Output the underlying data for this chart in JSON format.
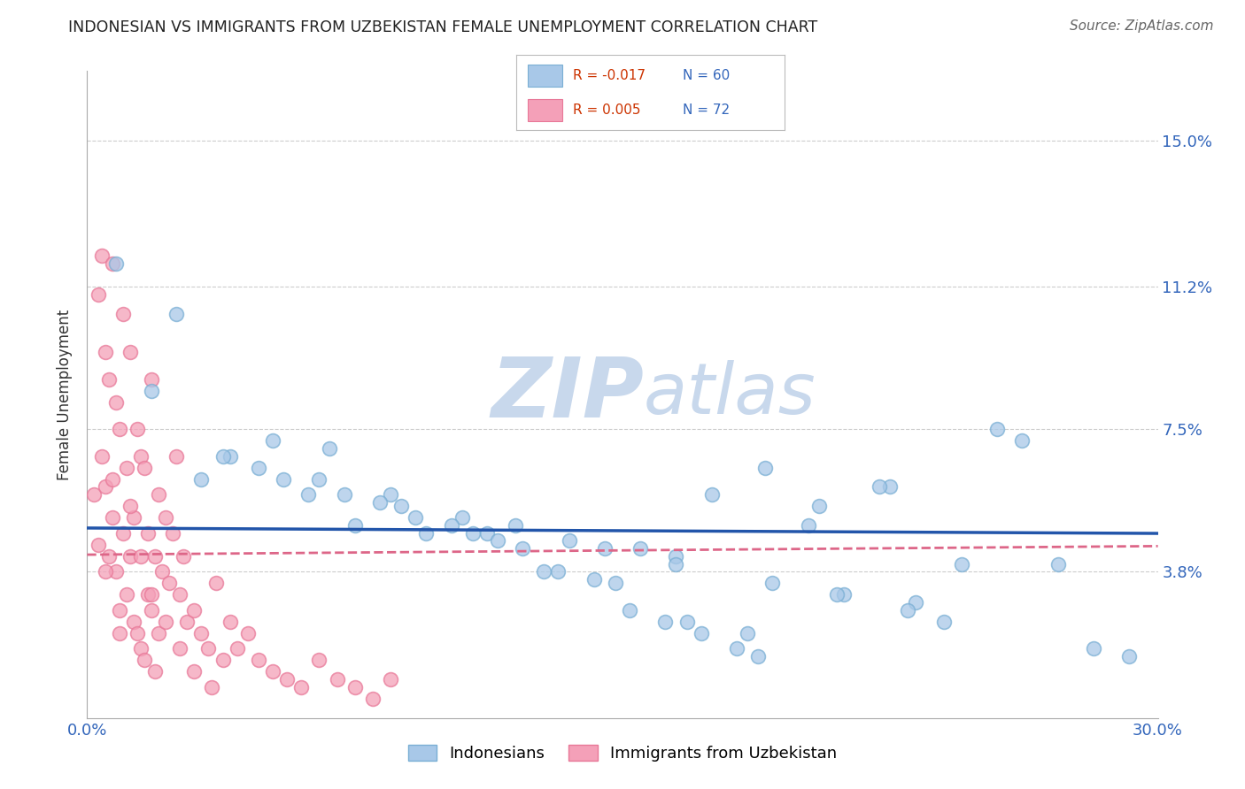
{
  "title": "INDONESIAN VS IMMIGRANTS FROM UZBEKISTAN FEMALE UNEMPLOYMENT CORRELATION CHART",
  "source": "Source: ZipAtlas.com",
  "ylabel": "Female Unemployment",
  "xlim": [
    0.0,
    0.3
  ],
  "ylim": [
    0.0,
    0.168
  ],
  "xticks": [
    0.0,
    0.05,
    0.1,
    0.15,
    0.2,
    0.25,
    0.3
  ],
  "xticklabels": [
    "0.0%",
    "",
    "",
    "",
    "",
    "",
    "30.0%"
  ],
  "yticks": [
    0.038,
    0.075,
    0.112,
    0.15
  ],
  "yticklabels": [
    "3.8%",
    "7.5%",
    "11.2%",
    "15.0%"
  ],
  "hgrid_values": [
    0.038,
    0.075,
    0.112,
    0.15
  ],
  "blue_R": "-0.017",
  "blue_N": "60",
  "pink_R": "0.005",
  "pink_N": "72",
  "blue_color": "#a8c8e8",
  "pink_color": "#f4a0b8",
  "blue_edge_color": "#7aafd4",
  "pink_edge_color": "#e87898",
  "blue_line_color": "#2255aa",
  "pink_line_color": "#dd6688",
  "watermark_zip": "ZIP",
  "watermark_atlas": "atlas",
  "watermark_color": "#c8d8ec",
  "legend_label_blue": "Indonesians",
  "legend_label_pink": "Immigrants from Uzbekistan",
  "blue_scatter_x": [
    0.008,
    0.025,
    0.018,
    0.04,
    0.065,
    0.085,
    0.105,
    0.12,
    0.135,
    0.155,
    0.165,
    0.175,
    0.19,
    0.205,
    0.225,
    0.24,
    0.255,
    0.032,
    0.052,
    0.072,
    0.092,
    0.112,
    0.132,
    0.152,
    0.172,
    0.192,
    0.212,
    0.232,
    0.262,
    0.282,
    0.062,
    0.082,
    0.102,
    0.122,
    0.142,
    0.162,
    0.182,
    0.202,
    0.222,
    0.245,
    0.038,
    0.055,
    0.075,
    0.095,
    0.115,
    0.145,
    0.165,
    0.185,
    0.21,
    0.23,
    0.048,
    0.068,
    0.088,
    0.108,
    0.128,
    0.148,
    0.168,
    0.188,
    0.272,
    0.292
  ],
  "blue_scatter_y": [
    0.118,
    0.105,
    0.085,
    0.068,
    0.062,
    0.058,
    0.052,
    0.05,
    0.046,
    0.044,
    0.042,
    0.058,
    0.065,
    0.055,
    0.06,
    0.025,
    0.075,
    0.062,
    0.072,
    0.058,
    0.052,
    0.048,
    0.038,
    0.028,
    0.022,
    0.035,
    0.032,
    0.03,
    0.072,
    0.018,
    0.058,
    0.056,
    0.05,
    0.044,
    0.036,
    0.025,
    0.018,
    0.05,
    0.06,
    0.04,
    0.068,
    0.062,
    0.05,
    0.048,
    0.046,
    0.044,
    0.04,
    0.022,
    0.032,
    0.028,
    0.065,
    0.07,
    0.055,
    0.048,
    0.038,
    0.035,
    0.025,
    0.016,
    0.04,
    0.016
  ],
  "pink_scatter_x": [
    0.002,
    0.003,
    0.004,
    0.004,
    0.005,
    0.005,
    0.006,
    0.006,
    0.007,
    0.007,
    0.008,
    0.008,
    0.009,
    0.009,
    0.01,
    0.01,
    0.011,
    0.011,
    0.012,
    0.012,
    0.013,
    0.013,
    0.014,
    0.014,
    0.015,
    0.015,
    0.016,
    0.016,
    0.017,
    0.017,
    0.018,
    0.018,
    0.019,
    0.019,
    0.02,
    0.02,
    0.021,
    0.022,
    0.023,
    0.024,
    0.025,
    0.026,
    0.027,
    0.028,
    0.03,
    0.032,
    0.034,
    0.036,
    0.038,
    0.04,
    0.042,
    0.045,
    0.048,
    0.052,
    0.056,
    0.06,
    0.065,
    0.07,
    0.075,
    0.08,
    0.003,
    0.005,
    0.007,
    0.009,
    0.012,
    0.015,
    0.018,
    0.022,
    0.026,
    0.03,
    0.035,
    0.085
  ],
  "pink_scatter_y": [
    0.058,
    0.11,
    0.12,
    0.068,
    0.095,
    0.06,
    0.088,
    0.042,
    0.118,
    0.052,
    0.082,
    0.038,
    0.075,
    0.028,
    0.105,
    0.048,
    0.065,
    0.032,
    0.095,
    0.042,
    0.052,
    0.025,
    0.075,
    0.022,
    0.068,
    0.018,
    0.065,
    0.015,
    0.048,
    0.032,
    0.088,
    0.028,
    0.042,
    0.012,
    0.058,
    0.022,
    0.038,
    0.052,
    0.035,
    0.048,
    0.068,
    0.032,
    0.042,
    0.025,
    0.028,
    0.022,
    0.018,
    0.035,
    0.015,
    0.025,
    0.018,
    0.022,
    0.015,
    0.012,
    0.01,
    0.008,
    0.015,
    0.01,
    0.008,
    0.005,
    0.045,
    0.038,
    0.062,
    0.022,
    0.055,
    0.042,
    0.032,
    0.025,
    0.018,
    0.012,
    0.008,
    0.01
  ]
}
